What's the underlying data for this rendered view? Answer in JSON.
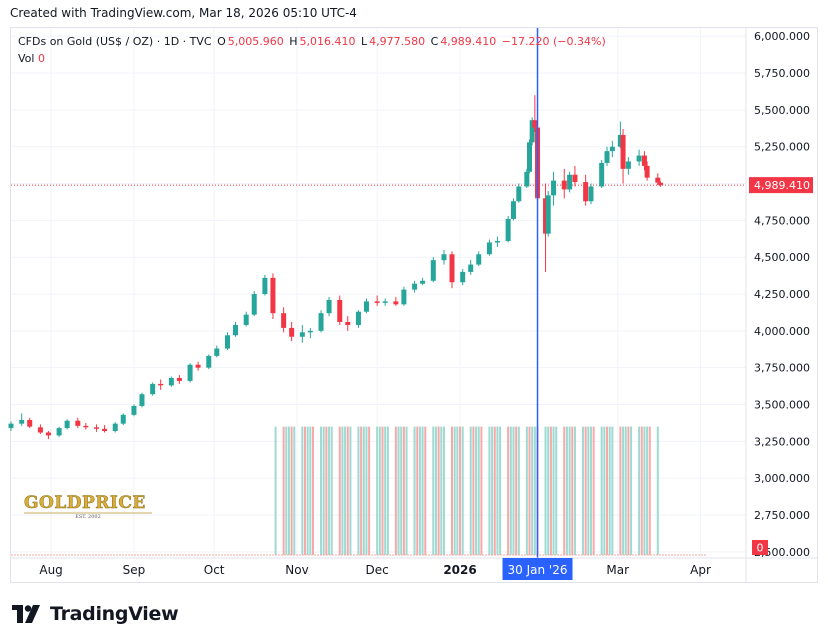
{
  "header": {
    "created_text": "Created with TradingView.com, Mar 18, 2026 05:10 UTC-4"
  },
  "legend": {
    "symbol": "CFDs on Gold (US$ / OZ) · 1D · TVC",
    "open_label": "O",
    "open_value": "5,005.960",
    "high_label": "H",
    "high_value": "5,016.410",
    "low_label": "L",
    "low_value": "4,977.580",
    "close_label": "C",
    "close_value": "4,989.410",
    "change_value": "−17.220 (−0.34%)",
    "vol_label": "Vol",
    "vol_value": "0"
  },
  "price_axis": {
    "last_price_badge": "4,989.410",
    "volume_badge": "0"
  },
  "time_axis": {
    "crosshair_label": "30 Jan '26"
  },
  "watermark": {
    "brand": "GOLDPRICE",
    "sub": "EST. 2002"
  },
  "footer": {
    "brand": "TradingView"
  },
  "colors": {
    "up": "#26a69a",
    "down": "#f23645",
    "crosshair": "#2962ff",
    "vol_up": "#9fd9d2",
    "vol_down": "#f7a9a7",
    "grid": "#f0f3fa"
  },
  "chart_data": {
    "type": "candlestick",
    "title": "CFDs on Gold (US$ / OZ) · 1D · TVC",
    "y_ticks": [
      2500,
      2750,
      3000,
      3250,
      3500,
      3750,
      4000,
      4250,
      4500,
      4750,
      5000,
      5250,
      5500,
      5750,
      6000
    ],
    "y_tick_labels": [
      "2,500.000",
      "2,750.000",
      "3,000.000",
      "3,250.000",
      "3,500.000",
      "3,750.000",
      "4,000.000",
      "4,250.000",
      "4,500.000",
      "4,750.000",
      "5,000.000",
      "5,250.000",
      "5,500.000",
      "5,750.000",
      "6,000.000"
    ],
    "ylim": [
      2458,
      6056
    ],
    "x_ticks": [
      {
        "label": "Aug",
        "date": "2025-08-01"
      },
      {
        "label": "Sep",
        "date": "2025-09-01"
      },
      {
        "label": "Oct",
        "date": "2025-10-01"
      },
      {
        "label": "Nov",
        "date": "2025-11-01"
      },
      {
        "label": "Dec",
        "date": "2025-12-01"
      },
      {
        "label": "2026",
        "date": "2026-01-01",
        "bold": true
      },
      {
        "label": "Mar",
        "date": "2026-03-01"
      },
      {
        "label": "Apr",
        "date": "2026-04-01"
      }
    ],
    "xlim": [
      "2025-07-17",
      "2026-04-18"
    ],
    "last_price": 4989.41,
    "crosshair_date": "2026-01-30",
    "grid": true,
    "volume": {
      "start_date": "2025-10-24",
      "end_date": "2026-03-16",
      "level": 3350
    },
    "series": [
      {
        "date": "2025-07-17",
        "o": 3340,
        "h": 3385,
        "l": 3320,
        "c": 3370
      },
      {
        "date": "2025-07-21",
        "o": 3370,
        "h": 3440,
        "l": 3355,
        "c": 3395
      },
      {
        "date": "2025-07-24",
        "o": 3395,
        "h": 3410,
        "l": 3340,
        "c": 3350
      },
      {
        "date": "2025-07-28",
        "o": 3345,
        "h": 3365,
        "l": 3300,
        "c": 3310
      },
      {
        "date": "2025-07-31",
        "o": 3310,
        "h": 3320,
        "l": 3265,
        "c": 3290
      },
      {
        "date": "2025-08-04",
        "o": 3290,
        "h": 3350,
        "l": 3280,
        "c": 3340
      },
      {
        "date": "2025-08-07",
        "o": 3340,
        "h": 3400,
        "l": 3330,
        "c": 3390
      },
      {
        "date": "2025-08-11",
        "o": 3390,
        "h": 3410,
        "l": 3340,
        "c": 3355
      },
      {
        "date": "2025-08-14",
        "o": 3355,
        "h": 3375,
        "l": 3330,
        "c": 3345
      },
      {
        "date": "2025-08-18",
        "o": 3345,
        "h": 3365,
        "l": 3315,
        "c": 3335
      },
      {
        "date": "2025-08-21",
        "o": 3335,
        "h": 3360,
        "l": 3310,
        "c": 3320
      },
      {
        "date": "2025-08-25",
        "o": 3320,
        "h": 3380,
        "l": 3310,
        "c": 3370
      },
      {
        "date": "2025-08-28",
        "o": 3370,
        "h": 3440,
        "l": 3360,
        "c": 3430
      },
      {
        "date": "2025-09-01",
        "o": 3430,
        "h": 3500,
        "l": 3420,
        "c": 3490
      },
      {
        "date": "2025-09-04",
        "o": 3490,
        "h": 3580,
        "l": 3480,
        "c": 3570
      },
      {
        "date": "2025-09-08",
        "o": 3570,
        "h": 3650,
        "l": 3560,
        "c": 3640
      },
      {
        "date": "2025-09-11",
        "o": 3640,
        "h": 3670,
        "l": 3600,
        "c": 3630
      },
      {
        "date": "2025-09-15",
        "o": 3630,
        "h": 3690,
        "l": 3620,
        "c": 3680
      },
      {
        "date": "2025-09-18",
        "o": 3680,
        "h": 3700,
        "l": 3640,
        "c": 3660
      },
      {
        "date": "2025-09-22",
        "o": 3660,
        "h": 3780,
        "l": 3650,
        "c": 3770
      },
      {
        "date": "2025-09-25",
        "o": 3770,
        "h": 3790,
        "l": 3730,
        "c": 3750
      },
      {
        "date": "2025-09-29",
        "o": 3750,
        "h": 3840,
        "l": 3740,
        "c": 3830
      },
      {
        "date": "2025-10-02",
        "o": 3830,
        "h": 3900,
        "l": 3820,
        "c": 3880
      },
      {
        "date": "2025-10-06",
        "o": 3880,
        "h": 3990,
        "l": 3870,
        "c": 3970
      },
      {
        "date": "2025-10-09",
        "o": 3970,
        "h": 4060,
        "l": 3960,
        "c": 4040
      },
      {
        "date": "2025-10-13",
        "o": 4040,
        "h": 4130,
        "l": 4030,
        "c": 4110
      },
      {
        "date": "2025-10-16",
        "o": 4110,
        "h": 4270,
        "l": 4100,
        "c": 4250
      },
      {
        "date": "2025-10-20",
        "o": 4250,
        "h": 4380,
        "l": 4240,
        "c": 4360
      },
      {
        "date": "2025-10-23",
        "o": 4360,
        "h": 4390,
        "l": 4080,
        "c": 4120
      },
      {
        "date": "2025-10-27",
        "o": 4120,
        "h": 4160,
        "l": 3990,
        "c": 4020
      },
      {
        "date": "2025-10-30",
        "o": 4020,
        "h": 4060,
        "l": 3930,
        "c": 3960
      },
      {
        "date": "2025-11-03",
        "o": 3960,
        "h": 4040,
        "l": 3920,
        "c": 3990
      },
      {
        "date": "2025-11-06",
        "o": 3990,
        "h": 4020,
        "l": 3950,
        "c": 4000
      },
      {
        "date": "2025-11-10",
        "o": 4000,
        "h": 4140,
        "l": 3990,
        "c": 4120
      },
      {
        "date": "2025-11-13",
        "o": 4120,
        "h": 4230,
        "l": 4100,
        "c": 4210
      },
      {
        "date": "2025-11-17",
        "o": 4210,
        "h": 4240,
        "l": 4040,
        "c": 4060
      },
      {
        "date": "2025-11-20",
        "o": 4060,
        "h": 4100,
        "l": 4000,
        "c": 4040
      },
      {
        "date": "2025-11-24",
        "o": 4040,
        "h": 4140,
        "l": 4020,
        "c": 4130
      },
      {
        "date": "2025-11-27",
        "o": 4130,
        "h": 4220,
        "l": 4120,
        "c": 4200
      },
      {
        "date": "2025-12-01",
        "o": 4200,
        "h": 4240,
        "l": 4170,
        "c": 4190
      },
      {
        "date": "2025-12-04",
        "o": 4190,
        "h": 4220,
        "l": 4170,
        "c": 4200
      },
      {
        "date": "2025-12-08",
        "o": 4200,
        "h": 4230,
        "l": 4170,
        "c": 4180
      },
      {
        "date": "2025-12-11",
        "o": 4180,
        "h": 4300,
        "l": 4170,
        "c": 4280
      },
      {
        "date": "2025-12-15",
        "o": 4280,
        "h": 4340,
        "l": 4260,
        "c": 4320
      },
      {
        "date": "2025-12-18",
        "o": 4320,
        "h": 4360,
        "l": 4310,
        "c": 4340
      },
      {
        "date": "2025-12-22",
        "o": 4340,
        "h": 4500,
        "l": 4330,
        "c": 4480
      },
      {
        "date": "2025-12-26",
        "o": 4480,
        "h": 4550,
        "l": 4450,
        "c": 4520
      },
      {
        "date": "2025-12-29",
        "o": 4520,
        "h": 4540,
        "l": 4290,
        "c": 4330
      },
      {
        "date": "2026-01-02",
        "o": 4330,
        "h": 4420,
        "l": 4310,
        "c": 4400
      },
      {
        "date": "2026-01-05",
        "o": 4400,
        "h": 4480,
        "l": 4380,
        "c": 4450
      },
      {
        "date": "2026-01-08",
        "o": 4450,
        "h": 4540,
        "l": 4440,
        "c": 4520
      },
      {
        "date": "2026-01-12",
        "o": 4520,
        "h": 4620,
        "l": 4510,
        "c": 4600
      },
      {
        "date": "2026-01-15",
        "o": 4600,
        "h": 4640,
        "l": 4570,
        "c": 4610
      },
      {
        "date": "2026-01-19",
        "o": 4610,
        "h": 4780,
        "l": 4600,
        "c": 4760
      },
      {
        "date": "2026-01-21",
        "o": 4760,
        "h": 4900,
        "l": 4750,
        "c": 4880
      },
      {
        "date": "2026-01-23",
        "o": 4880,
        "h": 5000,
        "l": 4870,
        "c": 4980
      },
      {
        "date": "2026-01-26",
        "o": 4980,
        "h": 5100,
        "l": 4970,
        "c": 5080
      },
      {
        "date": "2026-01-27",
        "o": 5080,
        "h": 5300,
        "l": 5070,
        "c": 5280
      },
      {
        "date": "2026-01-28",
        "o": 5280,
        "h": 5450,
        "l": 5260,
        "c": 5430
      },
      {
        "date": "2026-01-29",
        "o": 5430,
        "h": 5600,
        "l": 5350,
        "c": 5380
      },
      {
        "date": "2026-01-30",
        "o": 5380,
        "h": 5420,
        "l": 4880,
        "c": 4900
      },
      {
        "date": "2026-02-02",
        "o": 4900,
        "h": 5000,
        "l": 4400,
        "c": 4660
      },
      {
        "date": "2026-02-03",
        "o": 4660,
        "h": 4950,
        "l": 4640,
        "c": 4920
      },
      {
        "date": "2026-02-05",
        "o": 4920,
        "h": 5080,
        "l": 4850,
        "c": 5020
      },
      {
        "date": "2026-02-09",
        "o": 5020,
        "h": 5100,
        "l": 4900,
        "c": 4960
      },
      {
        "date": "2026-02-11",
        "o": 4960,
        "h": 5080,
        "l": 4940,
        "c": 5060
      },
      {
        "date": "2026-02-13",
        "o": 5060,
        "h": 5120,
        "l": 4980,
        "c": 5010
      },
      {
        "date": "2026-02-17",
        "o": 5010,
        "h": 5060,
        "l": 4850,
        "c": 4880
      },
      {
        "date": "2026-02-19",
        "o": 4880,
        "h": 5000,
        "l": 4860,
        "c": 4980
      },
      {
        "date": "2026-02-23",
        "o": 4980,
        "h": 5160,
        "l": 4970,
        "c": 5140
      },
      {
        "date": "2026-02-25",
        "o": 5140,
        "h": 5250,
        "l": 5120,
        "c": 5220
      },
      {
        "date": "2026-02-27",
        "o": 5220,
        "h": 5290,
        "l": 5180,
        "c": 5250
      },
      {
        "date": "2026-03-02",
        "o": 5250,
        "h": 5420,
        "l": 5240,
        "c": 5330
      },
      {
        "date": "2026-03-03",
        "o": 5330,
        "h": 5370,
        "l": 5000,
        "c": 5100
      },
      {
        "date": "2026-03-05",
        "o": 5100,
        "h": 5180,
        "l": 5060,
        "c": 5150
      },
      {
        "date": "2026-03-09",
        "o": 5150,
        "h": 5230,
        "l": 5120,
        "c": 5190
      },
      {
        "date": "2026-03-11",
        "o": 5190,
        "h": 5220,
        "l": 5090,
        "c": 5120
      },
      {
        "date": "2026-03-12",
        "o": 5120,
        "h": 5150,
        "l": 5020,
        "c": 5040
      },
      {
        "date": "2026-03-16",
        "o": 5040,
        "h": 5070,
        "l": 4990,
        "c": 5006
      },
      {
        "date": "2026-03-17",
        "o": 5006,
        "h": 5016,
        "l": 4978,
        "c": 4989
      }
    ]
  }
}
